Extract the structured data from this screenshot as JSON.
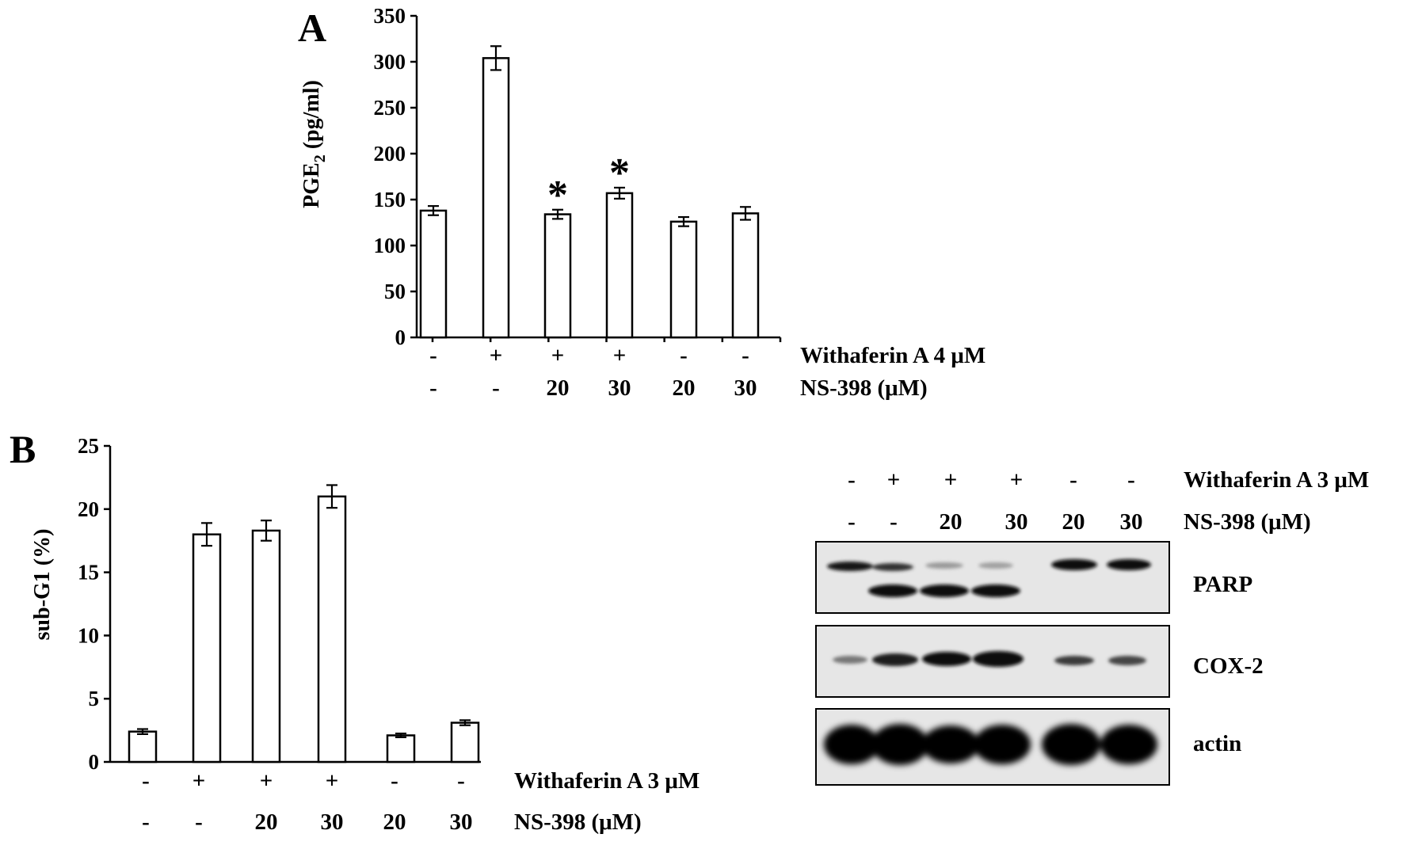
{
  "chart_data": [
    {
      "type": "bar",
      "panel_label": "A",
      "ylabel": "PGE",
      "ylabel_subscript": "2",
      "ylabel_unit": " (pg/ml)",
      "ylim": [
        0,
        350
      ],
      "yticks": [
        "0",
        "50",
        "100",
        "150",
        "200",
        "250",
        "300",
        "350"
      ],
      "values": [
        138,
        304,
        134,
        157,
        126,
        135
      ],
      "errors": [
        5,
        13,
        5,
        6,
        5,
        7
      ],
      "significance": [
        "",
        "",
        "*",
        "*",
        "",
        ""
      ],
      "treatment_rows": [
        {
          "label": "Withaferin A 4 μM",
          "values": [
            "-",
            "+",
            "+",
            "+",
            "-",
            "-"
          ]
        },
        {
          "label": "NS-398  (μM)",
          "values": [
            "-",
            "-",
            "20",
            "30",
            "20",
            "30"
          ]
        }
      ]
    },
    {
      "type": "bar",
      "panel_label": "B",
      "ylabel": "sub-G1 (%)",
      "ylim": [
        0,
        25
      ],
      "yticks": [
        "0",
        "5",
        "10",
        "15",
        "20",
        "25"
      ],
      "values": [
        2.4,
        18.0,
        18.3,
        21.0,
        2.1,
        3.1
      ],
      "errors": [
        0.2,
        0.9,
        0.8,
        0.9,
        0.15,
        0.2
      ],
      "treatment_rows": [
        {
          "label": "Withaferin A 3 μM",
          "values": [
            "-",
            "+",
            "+",
            "+",
            "-",
            "-"
          ]
        },
        {
          "label": "NS-398  (μM)",
          "values": [
            "-",
            "-",
            "20",
            "30",
            "20",
            "30"
          ]
        }
      ]
    }
  ],
  "blot": {
    "treatment_rows": [
      {
        "label": "Withaferin A 3 μM",
        "values": [
          "-",
          "+",
          "+",
          "+",
          "-",
          "-"
        ]
      },
      {
        "label": "NS-398  (μM)",
        "values": [
          "-",
          "-",
          "20",
          "30",
          "20",
          "30"
        ]
      }
    ],
    "panels": [
      {
        "label": "PARP"
      },
      {
        "label": "COX-2"
      },
      {
        "label": "actin"
      }
    ]
  }
}
